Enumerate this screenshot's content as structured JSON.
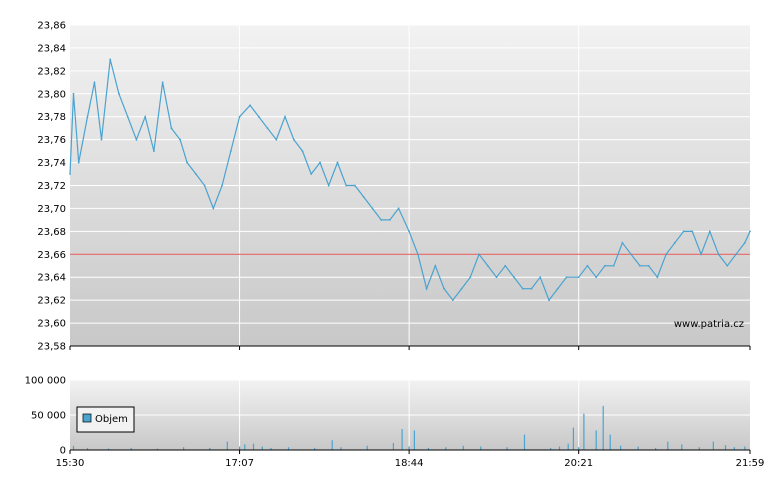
{
  "watermark": "www.patria.cz",
  "colors": {
    "price_line": "#4aa3d0",
    "reference_line": "#e05050",
    "volume_bar": "#4aa3d0",
    "grid": "#ffffff",
    "plot_bg_top": "#f2f2f2",
    "plot_bg_bottom": "#c8c8c8"
  },
  "chart_data": [
    {
      "type": "line",
      "name": "price",
      "grid": true,
      "x_range": [
        "15:30",
        "21:59"
      ],
      "x_ticks": [
        "15:30",
        "17:07",
        "18:44",
        "20:21",
        "21:59"
      ],
      "ylim": [
        23.58,
        23.86
      ],
      "y_ticks": [
        "23,58",
        "23,60",
        "23,62",
        "23,64",
        "23,66",
        "23,68",
        "23,70",
        "23,72",
        "23,74",
        "23,76",
        "23,78",
        "23,80",
        "23,82",
        "23,84",
        "23,86"
      ],
      "reference_value": 23.66,
      "points": [
        [
          "15:30",
          23.73
        ],
        [
          "15:32",
          23.8
        ],
        [
          "15:35",
          23.74
        ],
        [
          "15:40",
          23.78
        ],
        [
          "15:44",
          23.81
        ],
        [
          "15:48",
          23.76
        ],
        [
          "15:53",
          23.83
        ],
        [
          "15:58",
          23.8
        ],
        [
          "16:03",
          23.78
        ],
        [
          "16:08",
          23.76
        ],
        [
          "16:13",
          23.78
        ],
        [
          "16:18",
          23.75
        ],
        [
          "16:23",
          23.81
        ],
        [
          "16:28",
          23.77
        ],
        [
          "16:33",
          23.76
        ],
        [
          "16:37",
          23.74
        ],
        [
          "16:42",
          23.73
        ],
        [
          "16:47",
          23.72
        ],
        [
          "16:52",
          23.7
        ],
        [
          "16:57",
          23.72
        ],
        [
          "17:02",
          23.75
        ],
        [
          "17:07",
          23.78
        ],
        [
          "17:13",
          23.79
        ],
        [
          "17:18",
          23.78
        ],
        [
          "17:23",
          23.77
        ],
        [
          "17:28",
          23.76
        ],
        [
          "17:33",
          23.78
        ],
        [
          "17:38",
          23.76
        ],
        [
          "17:43",
          23.75
        ],
        [
          "17:48",
          23.73
        ],
        [
          "17:53",
          23.74
        ],
        [
          "17:58",
          23.72
        ],
        [
          "18:03",
          23.74
        ],
        [
          "18:08",
          23.72
        ],
        [
          "18:13",
          23.72
        ],
        [
          "18:18",
          23.71
        ],
        [
          "18:23",
          23.7
        ],
        [
          "18:28",
          23.69
        ],
        [
          "18:33",
          23.69
        ],
        [
          "18:38",
          23.7
        ],
        [
          "18:44",
          23.68
        ],
        [
          "18:49",
          23.66
        ],
        [
          "18:54",
          23.63
        ],
        [
          "18:59",
          23.65
        ],
        [
          "19:04",
          23.63
        ],
        [
          "19:09",
          23.62
        ],
        [
          "19:14",
          23.63
        ],
        [
          "19:19",
          23.64
        ],
        [
          "19:24",
          23.66
        ],
        [
          "19:29",
          23.65
        ],
        [
          "19:34",
          23.64
        ],
        [
          "19:39",
          23.65
        ],
        [
          "19:44",
          23.64
        ],
        [
          "19:49",
          23.63
        ],
        [
          "19:54",
          23.63
        ],
        [
          "19:59",
          23.64
        ],
        [
          "20:04",
          23.62
        ],
        [
          "20:09",
          23.63
        ],
        [
          "20:14",
          23.64
        ],
        [
          "20:21",
          23.64
        ],
        [
          "20:26",
          23.65
        ],
        [
          "20:31",
          23.64
        ],
        [
          "20:36",
          23.65
        ],
        [
          "20:41",
          23.65
        ],
        [
          "20:46",
          23.67
        ],
        [
          "20:51",
          23.66
        ],
        [
          "20:56",
          23.65
        ],
        [
          "21:01",
          23.65
        ],
        [
          "21:06",
          23.64
        ],
        [
          "21:11",
          23.66
        ],
        [
          "21:16",
          23.67
        ],
        [
          "21:21",
          23.68
        ],
        [
          "21:26",
          23.68
        ],
        [
          "21:31",
          23.66
        ],
        [
          "21:36",
          23.68
        ],
        [
          "21:41",
          23.66
        ],
        [
          "21:46",
          23.65
        ],
        [
          "21:51",
          23.66
        ],
        [
          "21:56",
          23.67
        ],
        [
          "21:59",
          23.68
        ]
      ]
    },
    {
      "type": "bar",
      "name": "volume",
      "legend": "Objem",
      "legend_position": "bottom-left",
      "grid": true,
      "x_range": [
        "15:30",
        "21:59"
      ],
      "x_ticks": [
        "15:30",
        "17:07",
        "18:44",
        "20:21",
        "21:59"
      ],
      "ylim": [
        0,
        100000
      ],
      "y_ticks": [
        "0",
        "50 000",
        "100 000"
      ],
      "bars": [
        [
          "15:32",
          6000
        ],
        [
          "15:40",
          3000
        ],
        [
          "15:52",
          2000
        ],
        [
          "16:05",
          3000
        ],
        [
          "16:20",
          2000
        ],
        [
          "16:35",
          4000
        ],
        [
          "16:50",
          3000
        ],
        [
          "17:00",
          12000
        ],
        [
          "17:07",
          5000
        ],
        [
          "17:10",
          8000
        ],
        [
          "17:15",
          9000
        ],
        [
          "17:20",
          5000
        ],
        [
          "17:25",
          3000
        ],
        [
          "17:35",
          4000
        ],
        [
          "17:50",
          3000
        ],
        [
          "18:00",
          14000
        ],
        [
          "18:05",
          4000
        ],
        [
          "18:20",
          6000
        ],
        [
          "18:35",
          10000
        ],
        [
          "18:40",
          30000
        ],
        [
          "18:44",
          5000
        ],
        [
          "18:47",
          28000
        ],
        [
          "18:55",
          3000
        ],
        [
          "19:05",
          4000
        ],
        [
          "19:15",
          6000
        ],
        [
          "19:25",
          5000
        ],
        [
          "19:40",
          4000
        ],
        [
          "19:50",
          22000
        ],
        [
          "20:05",
          3000
        ],
        [
          "20:10",
          5000
        ],
        [
          "20:15",
          9000
        ],
        [
          "20:18",
          32000
        ],
        [
          "20:21",
          4000
        ],
        [
          "20:24",
          52000
        ],
        [
          "20:31",
          28000
        ],
        [
          "20:35",
          63000
        ],
        [
          "20:39",
          22000
        ],
        [
          "20:45",
          6000
        ],
        [
          "20:55",
          5000
        ],
        [
          "21:05",
          3000
        ],
        [
          "21:12",
          12000
        ],
        [
          "21:20",
          8000
        ],
        [
          "21:30",
          4000
        ],
        [
          "21:38",
          12000
        ],
        [
          "21:45",
          7000
        ],
        [
          "21:50",
          4000
        ],
        [
          "21:56",
          5000
        ]
      ]
    }
  ]
}
